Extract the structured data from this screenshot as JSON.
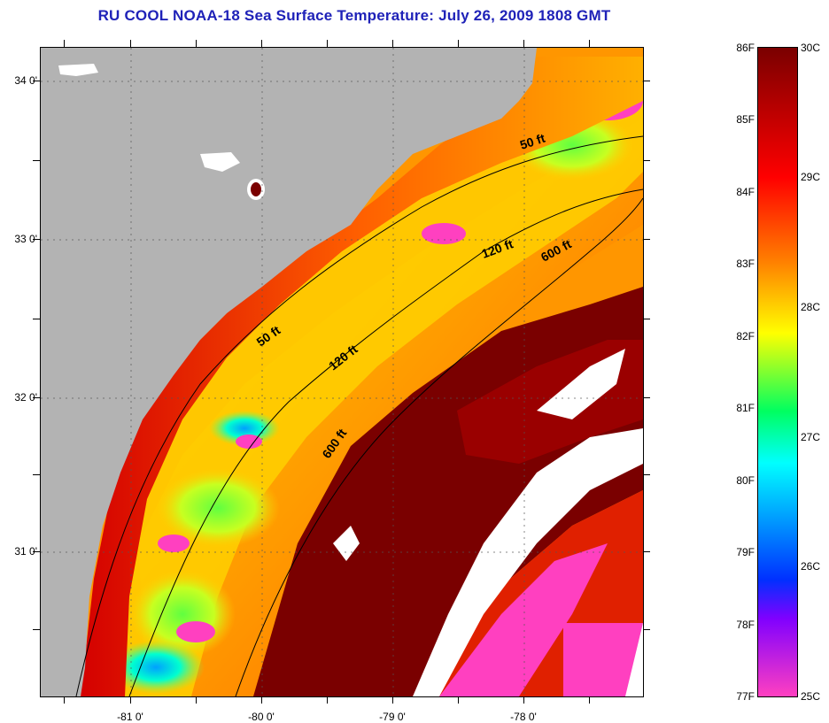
{
  "title": "RU COOL  NOAA-18  Sea Surface Temperature:  July 26, 2009 1808 GMT",
  "map": {
    "latitude_labels": [
      "34 0'",
      "33 0'",
      "32 0'",
      "31 0'"
    ],
    "longitude_labels": [
      "-81 0'",
      "-80 0'",
      "-79 0'",
      "-78 0'"
    ],
    "isobath_labels": [
      "50 ft",
      "120 ft",
      "600 ft",
      "50 ft",
      "120 ft",
      "600 ft"
    ]
  },
  "colorbar": {
    "fahrenheit_labels": [
      "86F",
      "85F",
      "84F",
      "83F",
      "82F",
      "81F",
      "80F",
      "79F",
      "78F",
      "77F"
    ],
    "celsius_labels": [
      "30C",
      "29C",
      "28C",
      "27C",
      "26C",
      "25C"
    ],
    "colors": {
      "max": "#7a0000",
      "red": "#ff0000",
      "orange": "#ff8000",
      "yellow": "#ffff00",
      "green": "#00ff60",
      "cyan": "#00ffff",
      "blue": "#0030ff",
      "violet": "#8000ff",
      "min": "#ff40c0"
    }
  },
  "colors": {
    "title": "#1f22b8",
    "land": "#b3b3b3",
    "clouds": "#ffffff"
  }
}
